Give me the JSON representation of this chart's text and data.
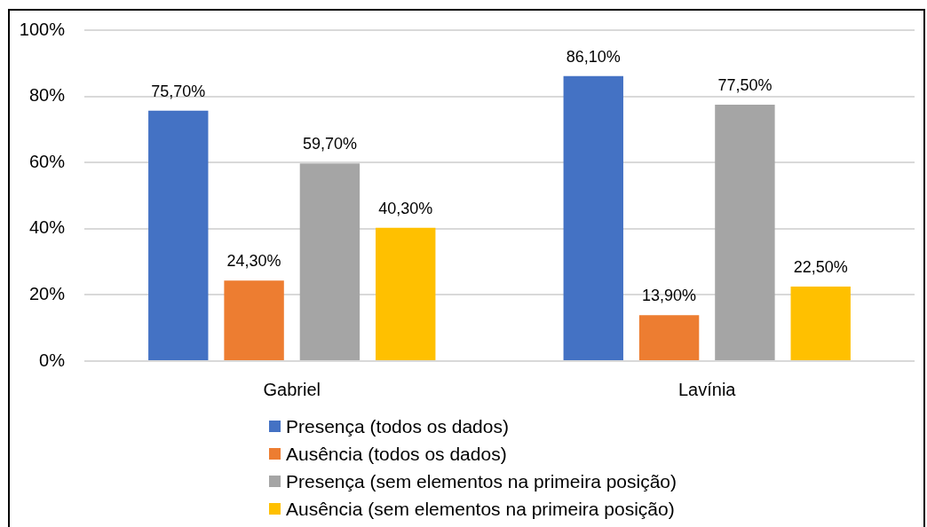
{
  "chart_data": {
    "type": "bar",
    "categories": [
      "Gabriel",
      "Lavínia"
    ],
    "series": [
      {
        "name": "Presença (todos os dados)",
        "color": "#4472c4",
        "values": [
          75.7,
          86.1
        ],
        "value_labels": [
          "75,70%",
          "86,10%"
        ]
      },
      {
        "name": "Ausência (todos os dados)",
        "color": "#ed7d31",
        "values": [
          24.3,
          13.9
        ],
        "value_labels": [
          "24,30%",
          "13,90%"
        ]
      },
      {
        "name": "Presença (sem elementos na primeira posição)",
        "color": "#a5a5a5",
        "values": [
          59.7,
          77.5
        ],
        "value_labels": [
          "59,70%",
          "77,50%"
        ]
      },
      {
        "name": "Ausência (sem elementos na primeira posição)",
        "color": "#ffc000",
        "values": [
          40.3,
          22.5
        ],
        "value_labels": [
          "40,30%",
          "22,50%"
        ]
      }
    ],
    "ylim": [
      0,
      100
    ],
    "yticks": [
      {
        "value": 0,
        "label": "0%"
      },
      {
        "value": 20,
        "label": "20%"
      },
      {
        "value": 40,
        "label": "40%"
      },
      {
        "value": 60,
        "label": "60%"
      },
      {
        "value": 80,
        "label": "80%"
      },
      {
        "value": 100,
        "label": "100%"
      }
    ],
    "grid": "y",
    "legend": "bottom"
  }
}
